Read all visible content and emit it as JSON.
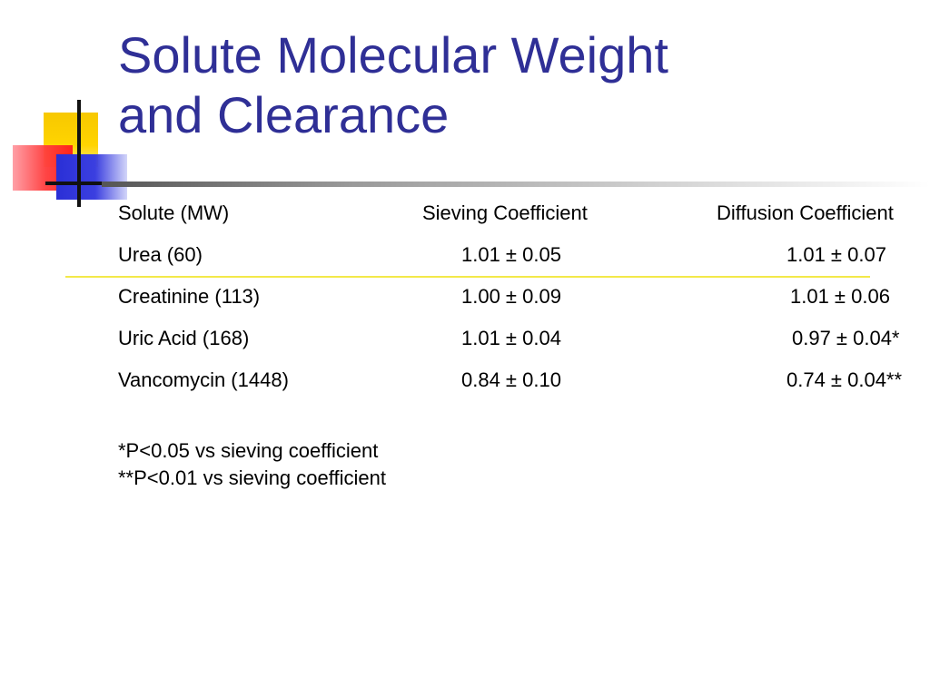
{
  "title": {
    "line1": "Solute Molecular Weight",
    "line2": "and Clearance"
  },
  "table": {
    "headers": [
      "Solute (MW)",
      "Sieving Coefficient",
      "Diffusion Coefficient"
    ],
    "rows": [
      [
        "Urea (60)",
        "1.01 ± 0.05",
        "1.01 ± 0.07"
      ],
      [
        "Creatinine (113)",
        "1.00 ± 0.09",
        "1.01 ± 0.06"
      ],
      [
        "Uric Acid (168)",
        "1.01 ± 0.04",
        "0.97 ± 0.04*"
      ],
      [
        "Vancomycin (1448)",
        "0.84 ± 0.10",
        "0.74 ± 0.04**"
      ]
    ]
  },
  "footnotes": [
    "*P<0.05 vs sieving coefficient",
    "**P<0.01 vs sieving coefficient"
  ]
}
